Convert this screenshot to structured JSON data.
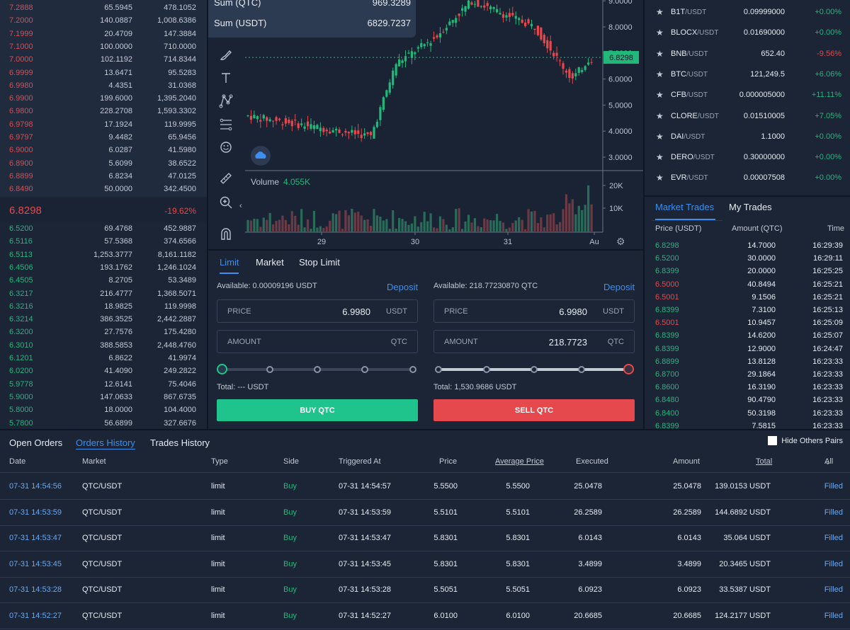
{
  "order_book": {
    "asks": [
      {
        "price": "7.2888",
        "amount": "65.5945",
        "total": "478.1052"
      },
      {
        "price": "7.2000",
        "amount": "140.0887",
        "total": "1,008.6386"
      },
      {
        "price": "7.1999",
        "amount": "20.4709",
        "total": "147.3884"
      },
      {
        "price": "7.1000",
        "amount": "100.0000",
        "total": "710.0000"
      },
      {
        "price": "7.0000",
        "amount": "102.1192",
        "total": "714.8344"
      },
      {
        "price": "6.9999",
        "amount": "13.6471",
        "total": "95.5283"
      },
      {
        "price": "6.9980",
        "amount": "4.4351",
        "total": "31.0368"
      },
      {
        "price": "6.9900",
        "amount": "199.6000",
        "total": "1,395.2040"
      },
      {
        "price": "6.9800",
        "amount": "228.2708",
        "total": "1,593.3302"
      },
      {
        "price": "6.9798",
        "amount": "17.1924",
        "total": "119.9995"
      },
      {
        "price": "6.9797",
        "amount": "9.4482",
        "total": "65.9456"
      },
      {
        "price": "6.9000",
        "amount": "6.0287",
        "total": "41.5980"
      },
      {
        "price": "6.8900",
        "amount": "5.6099",
        "total": "38.6522"
      },
      {
        "price": "6.8899",
        "amount": "6.8234",
        "total": "47.0125"
      },
      {
        "price": "6.8490",
        "amount": "50.0000",
        "total": "342.4500"
      }
    ],
    "last_price": "6.8298",
    "change": "-19.62%",
    "bids": [
      {
        "price": "6.5200",
        "amount": "69.4768",
        "total": "452.9887"
      },
      {
        "price": "6.5116",
        "amount": "57.5368",
        "total": "374.6566"
      },
      {
        "price": "6.5113",
        "amount": "1,253.3777",
        "total": "8,161.1182"
      },
      {
        "price": "6.4506",
        "amount": "193.1762",
        "total": "1,246.1024"
      },
      {
        "price": "6.4505",
        "amount": "8.2705",
        "total": "53.3489"
      },
      {
        "price": "6.3217",
        "amount": "216.4777",
        "total": "1,368.5071"
      },
      {
        "price": "6.3216",
        "amount": "18.9825",
        "total": "119.9998"
      },
      {
        "price": "6.3214",
        "amount": "386.3525",
        "total": "2,442.2887"
      },
      {
        "price": "6.3200",
        "amount": "27.7576",
        "total": "175.4280"
      },
      {
        "price": "6.3010",
        "amount": "388.5853",
        "total": "2,448.4760"
      },
      {
        "price": "6.1201",
        "amount": "6.8622",
        "total": "41.9974"
      },
      {
        "price": "6.0200",
        "amount": "41.4090",
        "total": "249.2822"
      },
      {
        "price": "5.9778",
        "amount": "12.6141",
        "total": "75.4046"
      },
      {
        "price": "5.9000",
        "amount": "147.0633",
        "total": "867.6735"
      },
      {
        "price": "5.8000",
        "amount": "18.0000",
        "total": "104.4000"
      },
      {
        "price": "5.7800",
        "amount": "56.6899",
        "total": "327.6676"
      }
    ]
  },
  "chart": {
    "tooltip": [
      {
        "label": "Sum (QTC)",
        "value": "969.3289"
      },
      {
        "label": "Sum (USDT)",
        "value": "6829.7237"
      }
    ],
    "price_ticks": [
      "9.0000",
      "8.0000",
      "7.0000",
      "6.0000",
      "5.0000",
      "4.0000",
      "3.0000"
    ],
    "current_price": "6.8298",
    "volume_label": "Volume",
    "volume_value": "4.055K",
    "volume_ticks": [
      "20K",
      "10K"
    ],
    "date_ticks": [
      "29",
      "30",
      "31",
      "Au"
    ],
    "tool_icons": [
      "cursor-icon",
      "brush-icon",
      "text-icon",
      "pattern-icon",
      "fib-icon",
      "emoji-icon",
      "ruler-icon",
      "zoom-in-icon",
      "magnet-icon"
    ],
    "colors": {
      "up": "#20b97a",
      "down": "#e5484d",
      "accent": "#3b8ff0"
    }
  },
  "trade": {
    "tabs": [
      "Limit",
      "Market",
      "Stop Limit"
    ],
    "buy": {
      "available": "Available: 0.00009196 USDT",
      "deposit": "Deposit",
      "price_label": "PRICE",
      "price": "6.9980",
      "price_unit": "USDT",
      "amount_label": "AMOUNT",
      "amount": "",
      "amount_unit": "QTC",
      "total": "Total: --- USDT",
      "button": "BUY QTC",
      "slider_pct": 0
    },
    "sell": {
      "available": "Available: 218.77230870 QTC",
      "deposit": "Deposit",
      "price_label": "PRICE",
      "price": "6.9980",
      "price_unit": "USDT",
      "amount_label": "AMOUNT",
      "amount": "218.7723",
      "amount_unit": "QTC",
      "total": "Total: 1,530.9686 USDT",
      "button": "SELL QTC",
      "slider_pct": 100
    }
  },
  "tickers": [
    {
      "base": "B1T",
      "quote": "/USDT",
      "price": "0.09999000",
      "change": "+0.00%",
      "dir": "up"
    },
    {
      "base": "BLOCX",
      "quote": "/USDT",
      "price": "0.01690000",
      "change": "+0.00%",
      "dir": "up"
    },
    {
      "base": "BNB",
      "quote": "/USDT",
      "price": "652.40",
      "change": "-9.56%",
      "dir": "down"
    },
    {
      "base": "BTC",
      "quote": "/USDT",
      "price": "121,249.5",
      "change": "+6.06%",
      "dir": "up"
    },
    {
      "base": "CFB",
      "quote": "/USDT",
      "price": "0.000005000",
      "change": "+11.11%",
      "dir": "up"
    },
    {
      "base": "CLORE",
      "quote": "/USDT",
      "price": "0.01510005",
      "change": "+7.05%",
      "dir": "up"
    },
    {
      "base": "DAI",
      "quote": "/USDT",
      "price": "1.1000",
      "change": "+0.00%",
      "dir": "up"
    },
    {
      "base": "DERO",
      "quote": "/USDT",
      "price": "0.30000000",
      "change": "+0.00%",
      "dir": "up"
    },
    {
      "base": "EVR",
      "quote": "/USDT",
      "price": "0.00007508",
      "change": "+0.00%",
      "dir": "up"
    }
  ],
  "market_trades": {
    "tabs": [
      "Market Trades",
      "My Trades"
    ],
    "headers": [
      "Price (USDT)",
      "Amount (QTC)",
      "Time"
    ],
    "rows": [
      {
        "price": "6.8298",
        "amount": "14.7000",
        "time": "16:29:39",
        "dir": "up"
      },
      {
        "price": "6.5200",
        "amount": "30.0000",
        "time": "16:29:11",
        "dir": "up"
      },
      {
        "price": "6.8399",
        "amount": "20.0000",
        "time": "16:25:25",
        "dir": "up"
      },
      {
        "price": "6.5000",
        "amount": "40.8494",
        "time": "16:25:21",
        "dir": "down"
      },
      {
        "price": "6.5001",
        "amount": "9.1506",
        "time": "16:25:21",
        "dir": "down"
      },
      {
        "price": "6.8399",
        "amount": "7.3100",
        "time": "16:25:13",
        "dir": "up"
      },
      {
        "price": "6.5001",
        "amount": "10.9457",
        "time": "16:25:09",
        "dir": "down"
      },
      {
        "price": "6.8399",
        "amount": "14.6200",
        "time": "16:25:07",
        "dir": "up"
      },
      {
        "price": "6.8399",
        "amount": "12.9000",
        "time": "16:24:47",
        "dir": "up"
      },
      {
        "price": "6.8899",
        "amount": "13.8128",
        "time": "16:23:33",
        "dir": "up"
      },
      {
        "price": "6.8700",
        "amount": "29.1864",
        "time": "16:23:33",
        "dir": "up"
      },
      {
        "price": "6.8600",
        "amount": "16.3190",
        "time": "16:23:33",
        "dir": "up"
      },
      {
        "price": "6.8480",
        "amount": "90.4790",
        "time": "16:23:33",
        "dir": "up"
      },
      {
        "price": "6.8400",
        "amount": "50.3198",
        "time": "16:23:33",
        "dir": "up"
      },
      {
        "price": "6.8399",
        "amount": "7.5815",
        "time": "16:23:33",
        "dir": "up"
      }
    ]
  },
  "orders": {
    "tabs": [
      "Open Orders",
      "Orders History",
      "Trades History"
    ],
    "hide_others": "Hide Others Pairs",
    "headers": {
      "date": "Date",
      "market": "Market",
      "type": "Type",
      "side": "Side",
      "triggered": "Triggered At",
      "price": "Price",
      "avg": "Average Price",
      "executed": "Executed",
      "amount": "Amount",
      "total": "Total",
      "all": "All"
    },
    "rows": [
      {
        "date": "07-31 14:54:56",
        "market": "QTC/USDT",
        "type": "limit",
        "side": "Buy",
        "triggered": "07-31 14:54:57",
        "price": "5.5500",
        "avg": "5.5500",
        "executed": "25.0478",
        "amount": "25.0478",
        "total": "139.0153 USDT",
        "status": "Filled"
      },
      {
        "date": "07-31 14:53:59",
        "market": "QTC/USDT",
        "type": "limit",
        "side": "Buy",
        "triggered": "07-31 14:53:59",
        "price": "5.5101",
        "avg": "5.5101",
        "executed": "26.2589",
        "amount": "26.2589",
        "total": "144.6892 USDT",
        "status": "Filled"
      },
      {
        "date": "07-31 14:53:47",
        "market": "QTC/USDT",
        "type": "limit",
        "side": "Buy",
        "triggered": "07-31 14:53:47",
        "price": "5.8301",
        "avg": "5.8301",
        "executed": "6.0143",
        "amount": "6.0143",
        "total": "35.064 USDT",
        "status": "Filled"
      },
      {
        "date": "07-31 14:53:45",
        "market": "QTC/USDT",
        "type": "limit",
        "side": "Buy",
        "triggered": "07-31 14:53:45",
        "price": "5.8301",
        "avg": "5.8301",
        "executed": "3.4899",
        "amount": "3.4899",
        "total": "20.3465 USDT",
        "status": "Filled"
      },
      {
        "date": "07-31 14:53:28",
        "market": "QTC/USDT",
        "type": "limit",
        "side": "Buy",
        "triggered": "07-31 14:53:28",
        "price": "5.5051",
        "avg": "5.5051",
        "executed": "6.0923",
        "amount": "6.0923",
        "total": "33.5387 USDT",
        "status": "Filled"
      },
      {
        "date": "07-31 14:52:27",
        "market": "QTC/USDT",
        "type": "limit",
        "side": "Buy",
        "triggered": "07-31 14:52:27",
        "price": "6.0100",
        "avg": "6.0100",
        "executed": "20.6685",
        "amount": "20.6685",
        "total": "124.2177 USDT",
        "status": "Filled"
      }
    ]
  }
}
